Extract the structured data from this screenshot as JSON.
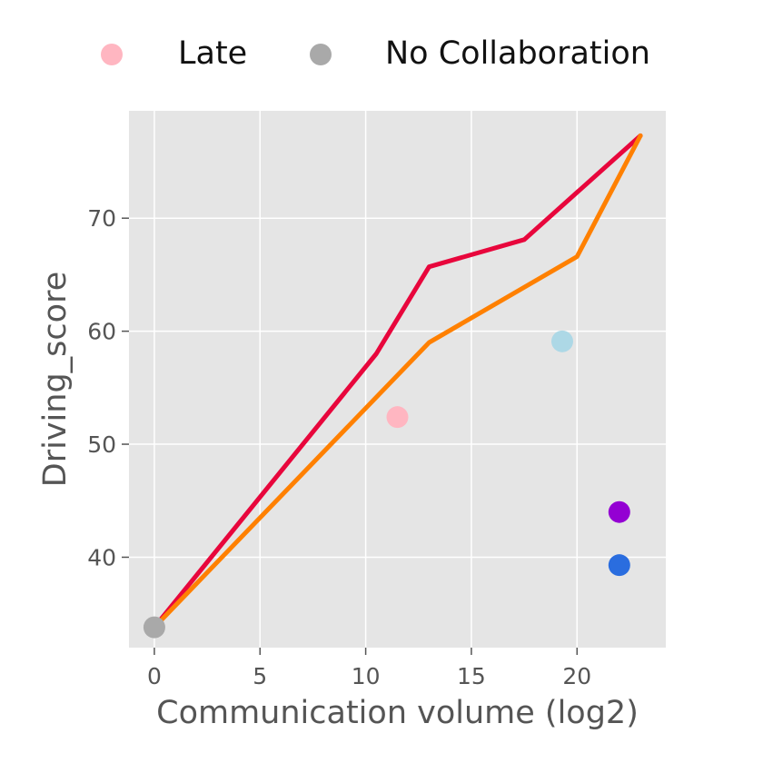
{
  "chart_data": {
    "type": "scatter",
    "title": "",
    "xlabel": "Communication volume (log2)",
    "ylabel": "Driving_score",
    "xlim": [
      -1.2,
      24.2
    ],
    "ylim": [
      32,
      79.5
    ],
    "xticks": [
      0,
      5,
      10,
      15,
      20
    ],
    "yticks": [
      40,
      50,
      60,
      70
    ],
    "grid": true,
    "legend_position": "top",
    "legend": [
      {
        "label": "Late",
        "color": "#ffb6c1"
      },
      {
        "label": "No Collaboration",
        "color": "#a9a9a9"
      }
    ],
    "points": [
      {
        "x": 0,
        "y": 33.8,
        "color": "#a9a9a9"
      },
      {
        "x": 11.5,
        "y": 52.4,
        "color": "#ffb6c1"
      },
      {
        "x": 19.3,
        "y": 59.1,
        "color": "#add8e6"
      },
      {
        "x": 22,
        "y": 44.0,
        "color": "#9400d3"
      },
      {
        "x": 22,
        "y": 39.3,
        "color": "#2a6ddf"
      }
    ],
    "lines": [
      {
        "color": "#e8063c",
        "points": [
          [
            0,
            33.8
          ],
          [
            10.5,
            58.0
          ],
          [
            13,
            65.7
          ],
          [
            17.5,
            68.1
          ],
          [
            23,
            77.3
          ]
        ]
      },
      {
        "color": "#ff8000",
        "points": [
          [
            0,
            33.8
          ],
          [
            13,
            59.0
          ],
          [
            20,
            66.6
          ],
          [
            23,
            77.3
          ]
        ]
      }
    ]
  }
}
